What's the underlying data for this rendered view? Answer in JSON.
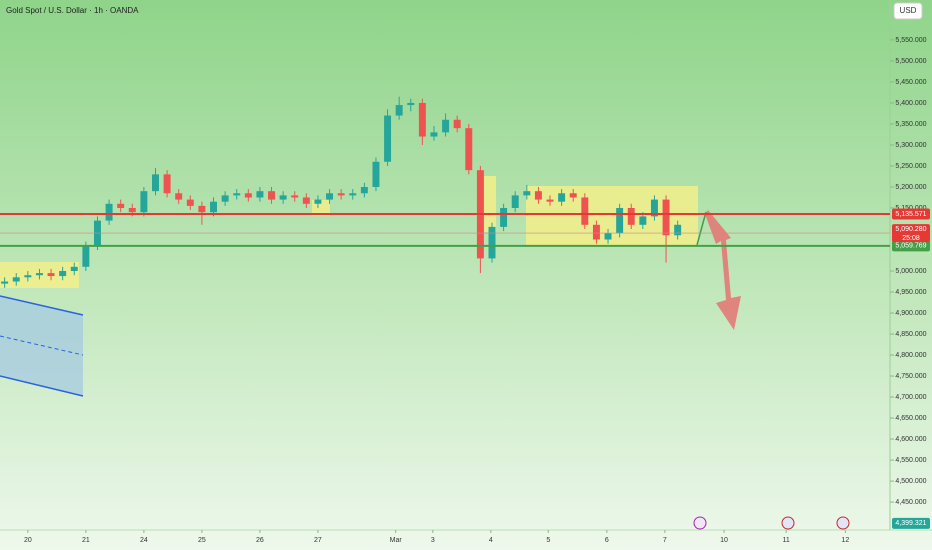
{
  "chart_data": {
    "type": "candlestick",
    "title": "Gold Spot / U.S. Dollar · 1h · OANDA",
    "currency": "USD",
    "up_color": "#26a69a",
    "down_color": "#ef5350",
    "xlim": [
      -0.48,
      14.86
    ],
    "ylim": [
      4336,
      5645
    ],
    "xticks": [
      {
        "value": 0,
        "label": "20"
      },
      {
        "value": 1,
        "label": "21"
      },
      {
        "value": 2,
        "label": "24"
      },
      {
        "value": 3,
        "label": "25"
      },
      {
        "value": 4,
        "label": "26"
      },
      {
        "value": 5,
        "label": "27"
      },
      {
        "value": 6.34,
        "label": "Mar"
      },
      {
        "value": 6.98,
        "label": "3"
      },
      {
        "value": 7.98,
        "label": "4"
      },
      {
        "value": 8.97,
        "label": "5"
      },
      {
        "value": 9.98,
        "label": "6"
      },
      {
        "value": 10.98,
        "label": "7"
      },
      {
        "value": 12,
        "label": "10"
      },
      {
        "value": 13.07,
        "label": "11"
      },
      {
        "value": 14.09,
        "label": "12"
      }
    ],
    "yticks": [
      {
        "value": 4450,
        "label": "4,450.000"
      },
      {
        "value": 4500,
        "label": "4,500.000"
      },
      {
        "value": 4550,
        "label": "4,550.000"
      },
      {
        "value": 4600,
        "label": "4,600.000"
      },
      {
        "value": 4650,
        "label": "4,650.000"
      },
      {
        "value": 4700,
        "label": "4,700.000"
      },
      {
        "value": 4750,
        "label": "4,750.000"
      },
      {
        "value": 4800,
        "label": "4,800.000"
      },
      {
        "value": 4850,
        "label": "4,850.000"
      },
      {
        "value": 4900,
        "label": "4,900.000"
      },
      {
        "value": 4950,
        "label": "4,950.000"
      },
      {
        "value": 5000,
        "label": "5,000.000"
      },
      {
        "value": 5150,
        "label": "5,150.000"
      },
      {
        "value": 5200,
        "label": "5,200.000"
      },
      {
        "value": 5250,
        "label": "5,250.000"
      },
      {
        "value": 5300,
        "label": "5,300.000"
      },
      {
        "value": 5350,
        "label": "5,350.000"
      },
      {
        "value": 5400,
        "label": "5,400.000"
      },
      {
        "value": 5450,
        "label": "5,450.000"
      },
      {
        "value": 5500,
        "label": "5,500.000"
      },
      {
        "value": 5550,
        "label": "5,550.000"
      }
    ],
    "price_levels": [
      {
        "value": 5135.571,
        "label": "5,135.571",
        "color": "#e53935"
      },
      {
        "value": 5059.769,
        "label": "5,059.769",
        "color": "#43a047"
      }
    ],
    "last_price": {
      "value": 5090.28,
      "label": "5,090.280",
      "countdown": "25:08",
      "color": "#e53935"
    },
    "low_marker": {
      "value": 4399.321,
      "label": "4,399.321",
      "color": "#26a69a"
    },
    "x": [
      -0.4,
      -0.2,
      0,
      0.2,
      0.4,
      0.6,
      0.8,
      1,
      1.2,
      1.4,
      1.6,
      1.8,
      2,
      2.2,
      2.4,
      2.6,
      2.8,
      3,
      3.2,
      3.4,
      3.6,
      3.8,
      4,
      4.2,
      4.4,
      4.6,
      4.8,
      5,
      5.2,
      5.4,
      5.6,
      5.8,
      6,
      6.2,
      6.4,
      6.6,
      6.8,
      7,
      7.2,
      7.4,
      7.6,
      7.8,
      8,
      8.2,
      8.4,
      8.6,
      8.8,
      9,
      9.2,
      9.4,
      9.6,
      9.8,
      10,
      10.2,
      10.4,
      10.6,
      10.8,
      11,
      11.2
    ],
    "open": [
      4970,
      4975,
      4985,
      4990,
      4995,
      4988,
      5000,
      5010,
      5060,
      5120,
      5160,
      5150,
      5140,
      5190,
      5230,
      5185,
      5170,
      5155,
      5140,
      5165,
      5180,
      5185,
      5175,
      5190,
      5170,
      5180,
      5175,
      5160,
      5170,
      5185,
      5180,
      5185,
      5200,
      5260,
      5370,
      5395,
      5400,
      5320,
      5330,
      5360,
      5340,
      5240,
      5030,
      5105,
      5150,
      5180,
      5190,
      5170,
      5165,
      5185,
      5175,
      5110,
      5075,
      5090,
      5150,
      5110,
      5130,
      5170,
      5085
    ],
    "high": [
      4985,
      4995,
      5000,
      5005,
      5005,
      5010,
      5020,
      5070,
      5130,
      5170,
      5170,
      5160,
      5200,
      5245,
      5240,
      5195,
      5180,
      5165,
      5175,
      5190,
      5195,
      5195,
      5200,
      5200,
      5190,
      5190,
      5185,
      5180,
      5195,
      5195,
      5195,
      5210,
      5270,
      5385,
      5415,
      5410,
      5410,
      5345,
      5375,
      5370,
      5350,
      5250,
      5115,
      5160,
      5190,
      5205,
      5200,
      5180,
      5195,
      5195,
      5185,
      5120,
      5100,
      5160,
      5160,
      5140,
      5180,
      5180,
      5120
    ],
    "low": [
      4960,
      4965,
      4975,
      4980,
      4978,
      4978,
      4990,
      5000,
      5050,
      5110,
      5140,
      5130,
      5130,
      5180,
      5175,
      5160,
      5145,
      5110,
      5130,
      5155,
      5170,
      5165,
      5165,
      5160,
      5160,
      5165,
      5150,
      5150,
      5160,
      5170,
      5170,
      5175,
      5190,
      5250,
      5360,
      5380,
      5300,
      5310,
      5320,
      5330,
      5230,
      4995,
      5020,
      5095,
      5140,
      5170,
      5160,
      5155,
      5155,
      5165,
      5100,
      5065,
      5065,
      5080,
      5100,
      5100,
      5120,
      5020,
      5075
    ],
    "close": [
      4975,
      4985,
      4990,
      4995,
      4988,
      5000,
      5010,
      5060,
      5120,
      5160,
      5150,
      5140,
      5190,
      5230,
      5185,
      5170,
      5155,
      5140,
      5165,
      5180,
      5185,
      5175,
      5190,
      5170,
      5180,
      5175,
      5160,
      5170,
      5185,
      5180,
      5185,
      5200,
      5260,
      5370,
      5395,
      5400,
      5320,
      5330,
      5360,
      5340,
      5240,
      5030,
      5105,
      5150,
      5180,
      5190,
      5170,
      5165,
      5185,
      5175,
      5110,
      5075,
      5090,
      5150,
      5110,
      5130,
      5170,
      5085,
      5110
    ]
  }
}
